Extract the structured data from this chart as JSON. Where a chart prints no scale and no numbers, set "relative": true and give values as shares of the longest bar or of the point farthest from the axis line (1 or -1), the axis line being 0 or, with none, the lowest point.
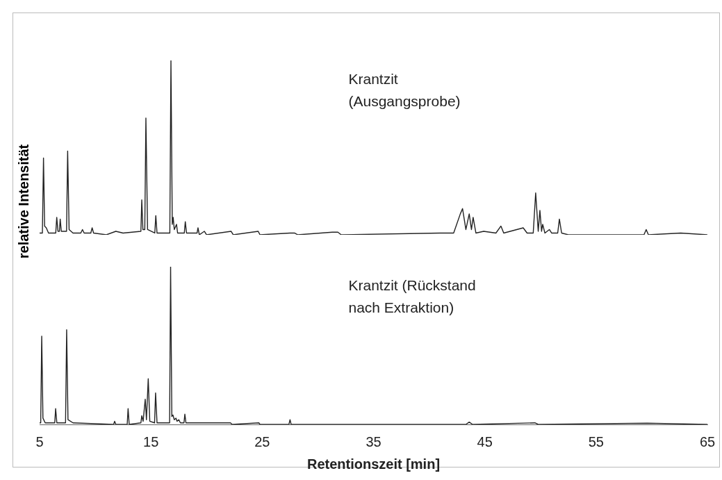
{
  "chart_data": [
    {
      "type": "line",
      "relative": true,
      "ylabel": "relative Intensität",
      "xlim": [
        5,
        65
      ],
      "tick_labels": false,
      "marker": "none",
      "line_style": "solid",
      "legend": false,
      "grid": false,
      "series": [
        {
          "name": "Krantzit (Ausgangsprobe)",
          "color": "#222222",
          "x": [
            5.0,
            5.25,
            5.35,
            5.45,
            5.6,
            5.8,
            6.45,
            6.54,
            6.65,
            6.78,
            6.85,
            6.95,
            7.42,
            7.52,
            7.65,
            8.0,
            8.7,
            8.85,
            9.0,
            9.6,
            9.72,
            9.85,
            11.0,
            11.85,
            12.5,
            14.1,
            14.18,
            14.28,
            14.45,
            14.55,
            14.7,
            15.35,
            15.44,
            15.55,
            16.7,
            16.8,
            16.92,
            17.0,
            17.1,
            17.3,
            17.4,
            18.0,
            18.09,
            18.2,
            19.15,
            19.23,
            19.35,
            19.8,
            20.0,
            22.2,
            22.4,
            24.64,
            24.8,
            27.5,
            27.9,
            28.2,
            31.3,
            31.8,
            32.1,
            41.0,
            42.2,
            42.8,
            43.0,
            43.3,
            43.6,
            43.8,
            43.95,
            44.2,
            44.9,
            46.0,
            46.45,
            46.7,
            48.45,
            48.8,
            49.35,
            49.57,
            49.8,
            49.95,
            50.1,
            50.2,
            50.4,
            50.8,
            51.0,
            51.55,
            51.7,
            51.9,
            52.5,
            59.3,
            59.5,
            59.7,
            62.6,
            65
          ],
          "values": [
            0.01,
            0.01,
            0.44,
            0.05,
            0.04,
            0.01,
            0.01,
            0.1,
            0.02,
            0.02,
            0.09,
            0.02,
            0.02,
            0.48,
            0.03,
            0.01,
            0.01,
            0.03,
            0.01,
            0.01,
            0.04,
            0.01,
            0,
            0.02,
            0.01,
            0.02,
            0.2,
            0.03,
            0.03,
            0.67,
            0.03,
            0.01,
            0.11,
            0.01,
            0.01,
            1,
            0.06,
            0.1,
            0.03,
            0.06,
            0.01,
            0.01,
            0.075,
            0.01,
            0.01,
            0.04,
            0,
            0.02,
            0,
            0.02,
            0,
            0.02,
            0,
            0.01,
            0.01,
            0,
            0.015,
            0.015,
            0,
            0.01,
            0.01,
            0.12,
            0.15,
            0.03,
            0.12,
            0.03,
            0.1,
            0.01,
            0.02,
            0.01,
            0.05,
            0.01,
            0.04,
            0.01,
            0.01,
            0.24,
            0.02,
            0.14,
            0.02,
            0.06,
            0.01,
            0.03,
            0.01,
            0.01,
            0.09,
            0.01,
            0,
            0,
            0.03,
            0,
            0.01,
            0
          ]
        }
      ]
    },
    {
      "type": "line",
      "relative": true,
      "xlabel": "Retentionszeit [min]",
      "xlim": [
        5,
        65
      ],
      "xticks": [
        5,
        15,
        25,
        35,
        45,
        55,
        65
      ],
      "tick_labels": "x",
      "marker": "none",
      "line_style": "solid",
      "legend": false,
      "grid": false,
      "series": [
        {
          "name": "Krantzit (Rückstand nach Extraktion)",
          "color": "#222222",
          "x": [
            5.0,
            5.1,
            5.19,
            5.3,
            5.5,
            6.36,
            6.44,
            6.55,
            7.33,
            7.43,
            7.55,
            8.0,
            11.65,
            11.74,
            11.85,
            12.87,
            12.95,
            13.05,
            14.1,
            14.18,
            14.3,
            14.49,
            14.6,
            14.76,
            14.9,
            15.33,
            15.42,
            15.55,
            16.68,
            16.77,
            16.88,
            16.98,
            17.1,
            17.25,
            17.35,
            17.5,
            17.65,
            17.97,
            18.05,
            18.15,
            22.15,
            22.3,
            24.7,
            24.8,
            27.4,
            27.5,
            27.6,
            43.3,
            43.6,
            43.9,
            49.5,
            49.8,
            59.6,
            65
          ],
          "values": [
            0.01,
            0.01,
            0.56,
            0.04,
            0.01,
            0.01,
            0.1,
            0.01,
            0.01,
            0.6,
            0.03,
            0.01,
            0,
            0.02,
            0,
            0,
            0.1,
            0,
            0.01,
            0.055,
            0.02,
            0.16,
            0.03,
            0.29,
            0.02,
            0.01,
            0.2,
            0.01,
            0.01,
            1,
            0.05,
            0.06,
            0.03,
            0.04,
            0.02,
            0.03,
            0.01,
            0.01,
            0.065,
            0.01,
            0.01,
            0,
            0.01,
            0,
            0,
            0.03,
            0,
            0,
            0.015,
            0,
            0.01,
            0,
            0.008,
            0
          ]
        }
      ]
    }
  ]
}
